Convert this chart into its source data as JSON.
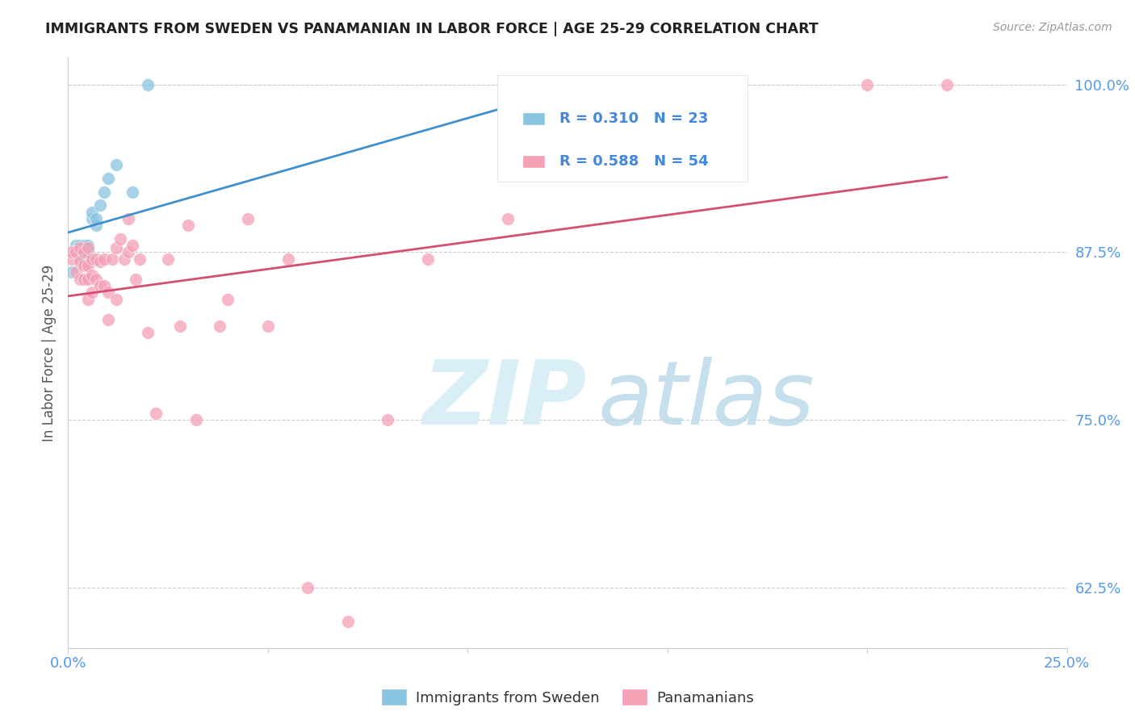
{
  "title": "IMMIGRANTS FROM SWEDEN VS PANAMANIAN IN LABOR FORCE | AGE 25-29 CORRELATION CHART",
  "source": "Source: ZipAtlas.com",
  "ylabel": "In Labor Force | Age 25-29",
  "xlim": [
    0.0,
    0.25
  ],
  "ylim": [
    0.58,
    1.02
  ],
  "xtick_pos": [
    0.0,
    0.05,
    0.1,
    0.15,
    0.2,
    0.25
  ],
  "xtick_labels": [
    "0.0%",
    "",
    "",
    "",
    "",
    "25.0%"
  ],
  "ytick_pos": [
    0.625,
    0.75,
    0.875,
    1.0
  ],
  "ytick_labels": [
    "62.5%",
    "75.0%",
    "87.5%",
    "100.0%"
  ],
  "legend_labels": [
    "Immigrants from Sweden",
    "Panamanians"
  ],
  "sweden_color": "#89c4e1",
  "panama_color": "#f4a0b5",
  "sweden_line_color": "#4090cc",
  "panama_line_color": "#d45070",
  "sweden_R": 0.31,
  "sweden_N": 23,
  "panama_R": 0.588,
  "panama_N": 54,
  "background_color": "#ffffff",
  "grid_color": "#cccccc",
  "sweden_x": [
    0.001,
    0.002,
    0.002,
    0.003,
    0.003,
    0.003,
    0.004,
    0.004,
    0.004,
    0.005,
    0.005,
    0.005,
    0.006,
    0.006,
    0.007,
    0.007,
    0.008,
    0.009,
    0.01,
    0.012,
    0.016,
    0.02,
    0.15
  ],
  "sweden_y": [
    0.86,
    0.875,
    0.88,
    0.87,
    0.875,
    0.88,
    0.87,
    0.878,
    0.88,
    0.868,
    0.875,
    0.88,
    0.9,
    0.905,
    0.895,
    0.9,
    0.91,
    0.92,
    0.93,
    0.94,
    0.92,
    1.0,
    1.0
  ],
  "panama_x": [
    0.001,
    0.001,
    0.002,
    0.002,
    0.003,
    0.003,
    0.003,
    0.004,
    0.004,
    0.004,
    0.005,
    0.005,
    0.005,
    0.005,
    0.006,
    0.006,
    0.006,
    0.007,
    0.007,
    0.008,
    0.008,
    0.009,
    0.009,
    0.01,
    0.01,
    0.011,
    0.012,
    0.012,
    0.013,
    0.014,
    0.015,
    0.015,
    0.016,
    0.017,
    0.018,
    0.02,
    0.022,
    0.025,
    0.028,
    0.03,
    0.032,
    0.038,
    0.04,
    0.045,
    0.05,
    0.055,
    0.06,
    0.07,
    0.08,
    0.09,
    0.11,
    0.15,
    0.2,
    0.22
  ],
  "panama_y": [
    0.87,
    0.875,
    0.86,
    0.875,
    0.855,
    0.868,
    0.878,
    0.855,
    0.865,
    0.875,
    0.84,
    0.855,
    0.865,
    0.878,
    0.845,
    0.858,
    0.87,
    0.855,
    0.87,
    0.85,
    0.868,
    0.85,
    0.87,
    0.825,
    0.845,
    0.87,
    0.84,
    0.878,
    0.885,
    0.87,
    0.875,
    0.9,
    0.88,
    0.855,
    0.87,
    0.815,
    0.755,
    0.87,
    0.82,
    0.895,
    0.75,
    0.82,
    0.84,
    0.9,
    0.82,
    0.87,
    0.625,
    0.6,
    0.75,
    0.87,
    0.9,
    1.0,
    1.0,
    1.0
  ]
}
